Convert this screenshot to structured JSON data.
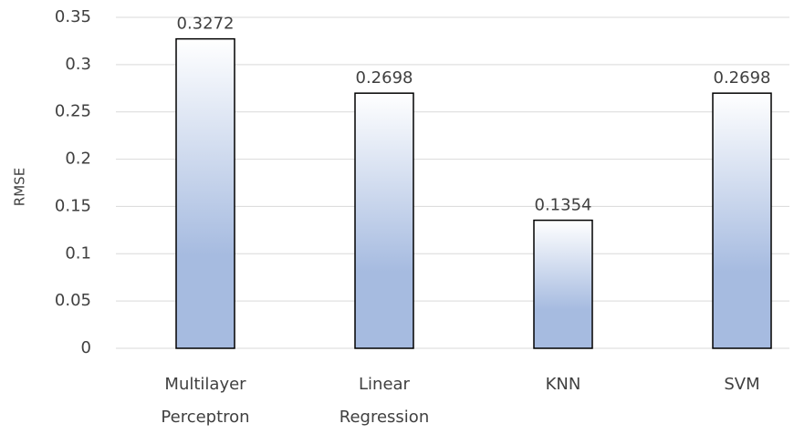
{
  "chart_data": {
    "type": "bar",
    "y_label": "RMSE",
    "categories": [
      "Multilayer Perceptron",
      "Linear Regression",
      "KNN",
      "SVM"
    ],
    "values": [
      0.3272,
      0.2698,
      0.1354,
      0.2698
    ],
    "color": "#a6bbe0",
    "ylim": [
      0,
      0.35
    ],
    "yticks": [
      0,
      0.05,
      0.1,
      0.15,
      0.2,
      0.25,
      0.3,
      0.35
    ],
    "grid": true
  }
}
